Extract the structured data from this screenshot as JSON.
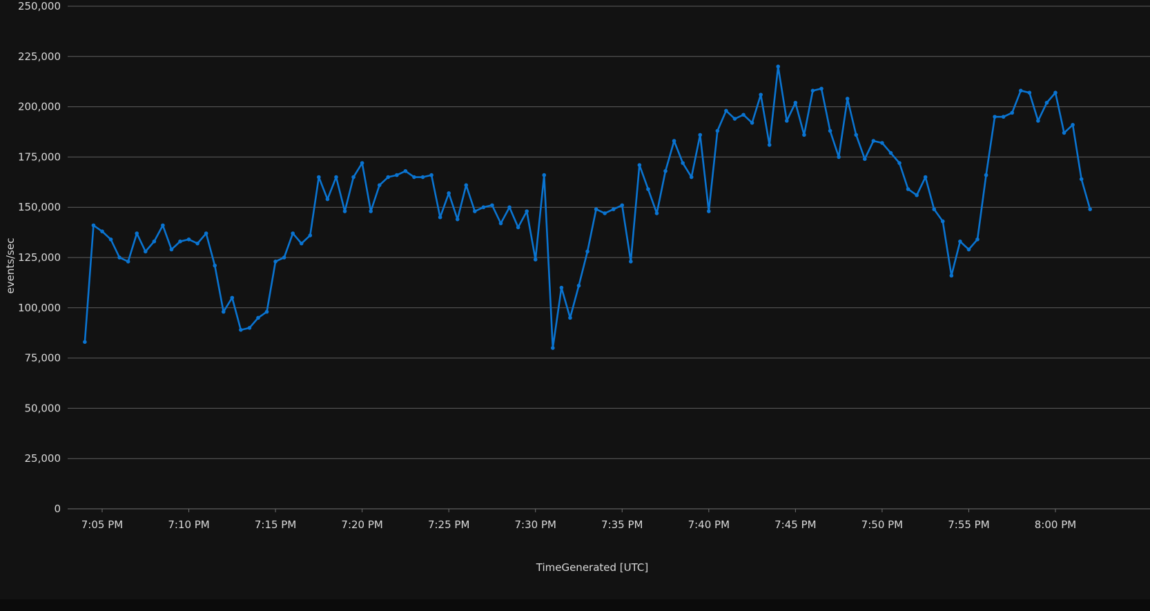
{
  "chart_data": {
    "type": "line",
    "xlabel": "TimeGenerated [UTC]",
    "ylabel": "events/sec",
    "ylim": [
      0,
      250000
    ],
    "grid": true,
    "legend": "none",
    "x_ticks": [
      "7:05 PM",
      "7:10 PM",
      "7:15 PM",
      "7:20 PM",
      "7:25 PM",
      "7:30 PM",
      "7:35 PM",
      "7:40 PM",
      "7:45 PM",
      "7:50 PM",
      "7:55 PM",
      "8:00 PM"
    ],
    "y_ticks": [
      "0",
      "25,000",
      "50,000",
      "75,000",
      "100,000",
      "125,000",
      "150,000",
      "175,000",
      "200,000",
      "225,000",
      "250,000"
    ],
    "series": [
      {
        "color": "#0a74d1",
        "values": [
          [
            "7:04 PM",
            83000
          ],
          [
            "7:04:30 PM",
            141000
          ],
          [
            "7:05 PM",
            138000
          ],
          [
            "7:05:30 PM",
            134000
          ],
          [
            "7:06 PM",
            125000
          ],
          [
            "7:06:30 PM",
            123000
          ],
          [
            "7:07 PM",
            137000
          ],
          [
            "7:07:30 PM",
            128000
          ],
          [
            "7:08 PM",
            133000
          ],
          [
            "7:08:30 PM",
            141000
          ],
          [
            "7:09 PM",
            129000
          ],
          [
            "7:09:30 PM",
            133000
          ],
          [
            "7:10 PM",
            134000
          ],
          [
            "7:10:30 PM",
            132000
          ],
          [
            "7:11 PM",
            137000
          ],
          [
            "7:11:30 PM",
            121000
          ],
          [
            "7:12 PM",
            98000
          ],
          [
            "7:12:30 PM",
            105000
          ],
          [
            "7:13 PM",
            89000
          ],
          [
            "7:13:30 PM",
            90000
          ],
          [
            "7:14 PM",
            95000
          ],
          [
            "7:14:30 PM",
            98000
          ],
          [
            "7:15 PM",
            123000
          ],
          [
            "7:15:30 PM",
            125000
          ],
          [
            "7:16 PM",
            137000
          ],
          [
            "7:16:30 PM",
            132000
          ],
          [
            "7:17 PM",
            136000
          ],
          [
            "7:17:30 PM",
            165000
          ],
          [
            "7:18 PM",
            154000
          ],
          [
            "7:18:30 PM",
            165000
          ],
          [
            "7:19 PM",
            148000
          ],
          [
            "7:19:30 PM",
            165000
          ],
          [
            "7:20 PM",
            172000
          ],
          [
            "7:20:30 PM",
            148000
          ],
          [
            "7:21 PM",
            161000
          ],
          [
            "7:21:30 PM",
            165000
          ],
          [
            "7:22 PM",
            166000
          ],
          [
            "7:22:30 PM",
            168000
          ],
          [
            "7:23 PM",
            165000
          ],
          [
            "7:23:30 PM",
            165000
          ],
          [
            "7:24 PM",
            166000
          ],
          [
            "7:24:30 PM",
            145000
          ],
          [
            "7:25 PM",
            157000
          ],
          [
            "7:25:30 PM",
            144000
          ],
          [
            "7:26 PM",
            161000
          ],
          [
            "7:26:30 PM",
            148000
          ],
          [
            "7:27 PM",
            150000
          ],
          [
            "7:27:30 PM",
            151000
          ],
          [
            "7:28 PM",
            142000
          ],
          [
            "7:28:30 PM",
            150000
          ],
          [
            "7:29 PM",
            140000
          ],
          [
            "7:29:30 PM",
            148000
          ],
          [
            "7:30 PM",
            124000
          ],
          [
            "7:30:30 PM",
            166000
          ],
          [
            "7:31 PM",
            80000
          ],
          [
            "7:31:30 PM",
            110000
          ],
          [
            "7:32 PM",
            95000
          ],
          [
            "7:32:30 PM",
            111000
          ],
          [
            "7:33 PM",
            128000
          ],
          [
            "7:33:30 PM",
            149000
          ],
          [
            "7:34 PM",
            147000
          ],
          [
            "7:34:30 PM",
            149000
          ],
          [
            "7:35 PM",
            151000
          ],
          [
            "7:35:30 PM",
            123000
          ],
          [
            "7:36 PM",
            171000
          ],
          [
            "7:36:30 PM",
            159000
          ],
          [
            "7:37 PM",
            147000
          ],
          [
            "7:37:30 PM",
            168000
          ],
          [
            "7:38 PM",
            183000
          ],
          [
            "7:38:30 PM",
            172000
          ],
          [
            "7:39 PM",
            165000
          ],
          [
            "7:39:30 PM",
            186000
          ],
          [
            "7:40 PM",
            148000
          ],
          [
            "7:40:30 PM",
            188000
          ],
          [
            "7:41 PM",
            198000
          ],
          [
            "7:41:30 PM",
            194000
          ],
          [
            "7:42 PM",
            196000
          ],
          [
            "7:42:30 PM",
            192000
          ],
          [
            "7:43 PM",
            206000
          ],
          [
            "7:43:30 PM",
            181000
          ],
          [
            "7:44 PM",
            220000
          ],
          [
            "7:44:30 PM",
            193000
          ],
          [
            "7:45 PM",
            202000
          ],
          [
            "7:45:30 PM",
            186000
          ],
          [
            "7:46 PM",
            208000
          ],
          [
            "7:46:30 PM",
            209000
          ],
          [
            "7:47 PM",
            188000
          ],
          [
            "7:47:30 PM",
            175000
          ],
          [
            "7:48 PM",
            204000
          ],
          [
            "7:48:30 PM",
            186000
          ],
          [
            "7:49 PM",
            174000
          ],
          [
            "7:49:30 PM",
            183000
          ],
          [
            "7:50 PM",
            182000
          ],
          [
            "7:50:30 PM",
            177000
          ],
          [
            "7:51 PM",
            172000
          ],
          [
            "7:51:30 PM",
            159000
          ],
          [
            "7:52 PM",
            156000
          ],
          [
            "7:52:30 PM",
            165000
          ],
          [
            "7:53 PM",
            149000
          ],
          [
            "7:53:30 PM",
            143000
          ],
          [
            "7:54 PM",
            116000
          ],
          [
            "7:54:30 PM",
            133000
          ],
          [
            "7:55 PM",
            129000
          ],
          [
            "7:55:30 PM",
            134000
          ],
          [
            "7:56 PM",
            166000
          ],
          [
            "7:56:30 PM",
            195000
          ],
          [
            "7:57 PM",
            195000
          ],
          [
            "7:57:30 PM",
            197000
          ],
          [
            "7:58 PM",
            208000
          ],
          [
            "7:58:30 PM",
            207000
          ],
          [
            "7:59 PM",
            193000
          ],
          [
            "7:59:30 PM",
            202000
          ],
          [
            "8:00 PM",
            207000
          ],
          [
            "8:00:30 PM",
            187000
          ],
          [
            "8:01 PM",
            191000
          ],
          [
            "8:01:30 PM",
            164000
          ],
          [
            "8:02 PM",
            149000
          ]
        ]
      }
    ]
  }
}
